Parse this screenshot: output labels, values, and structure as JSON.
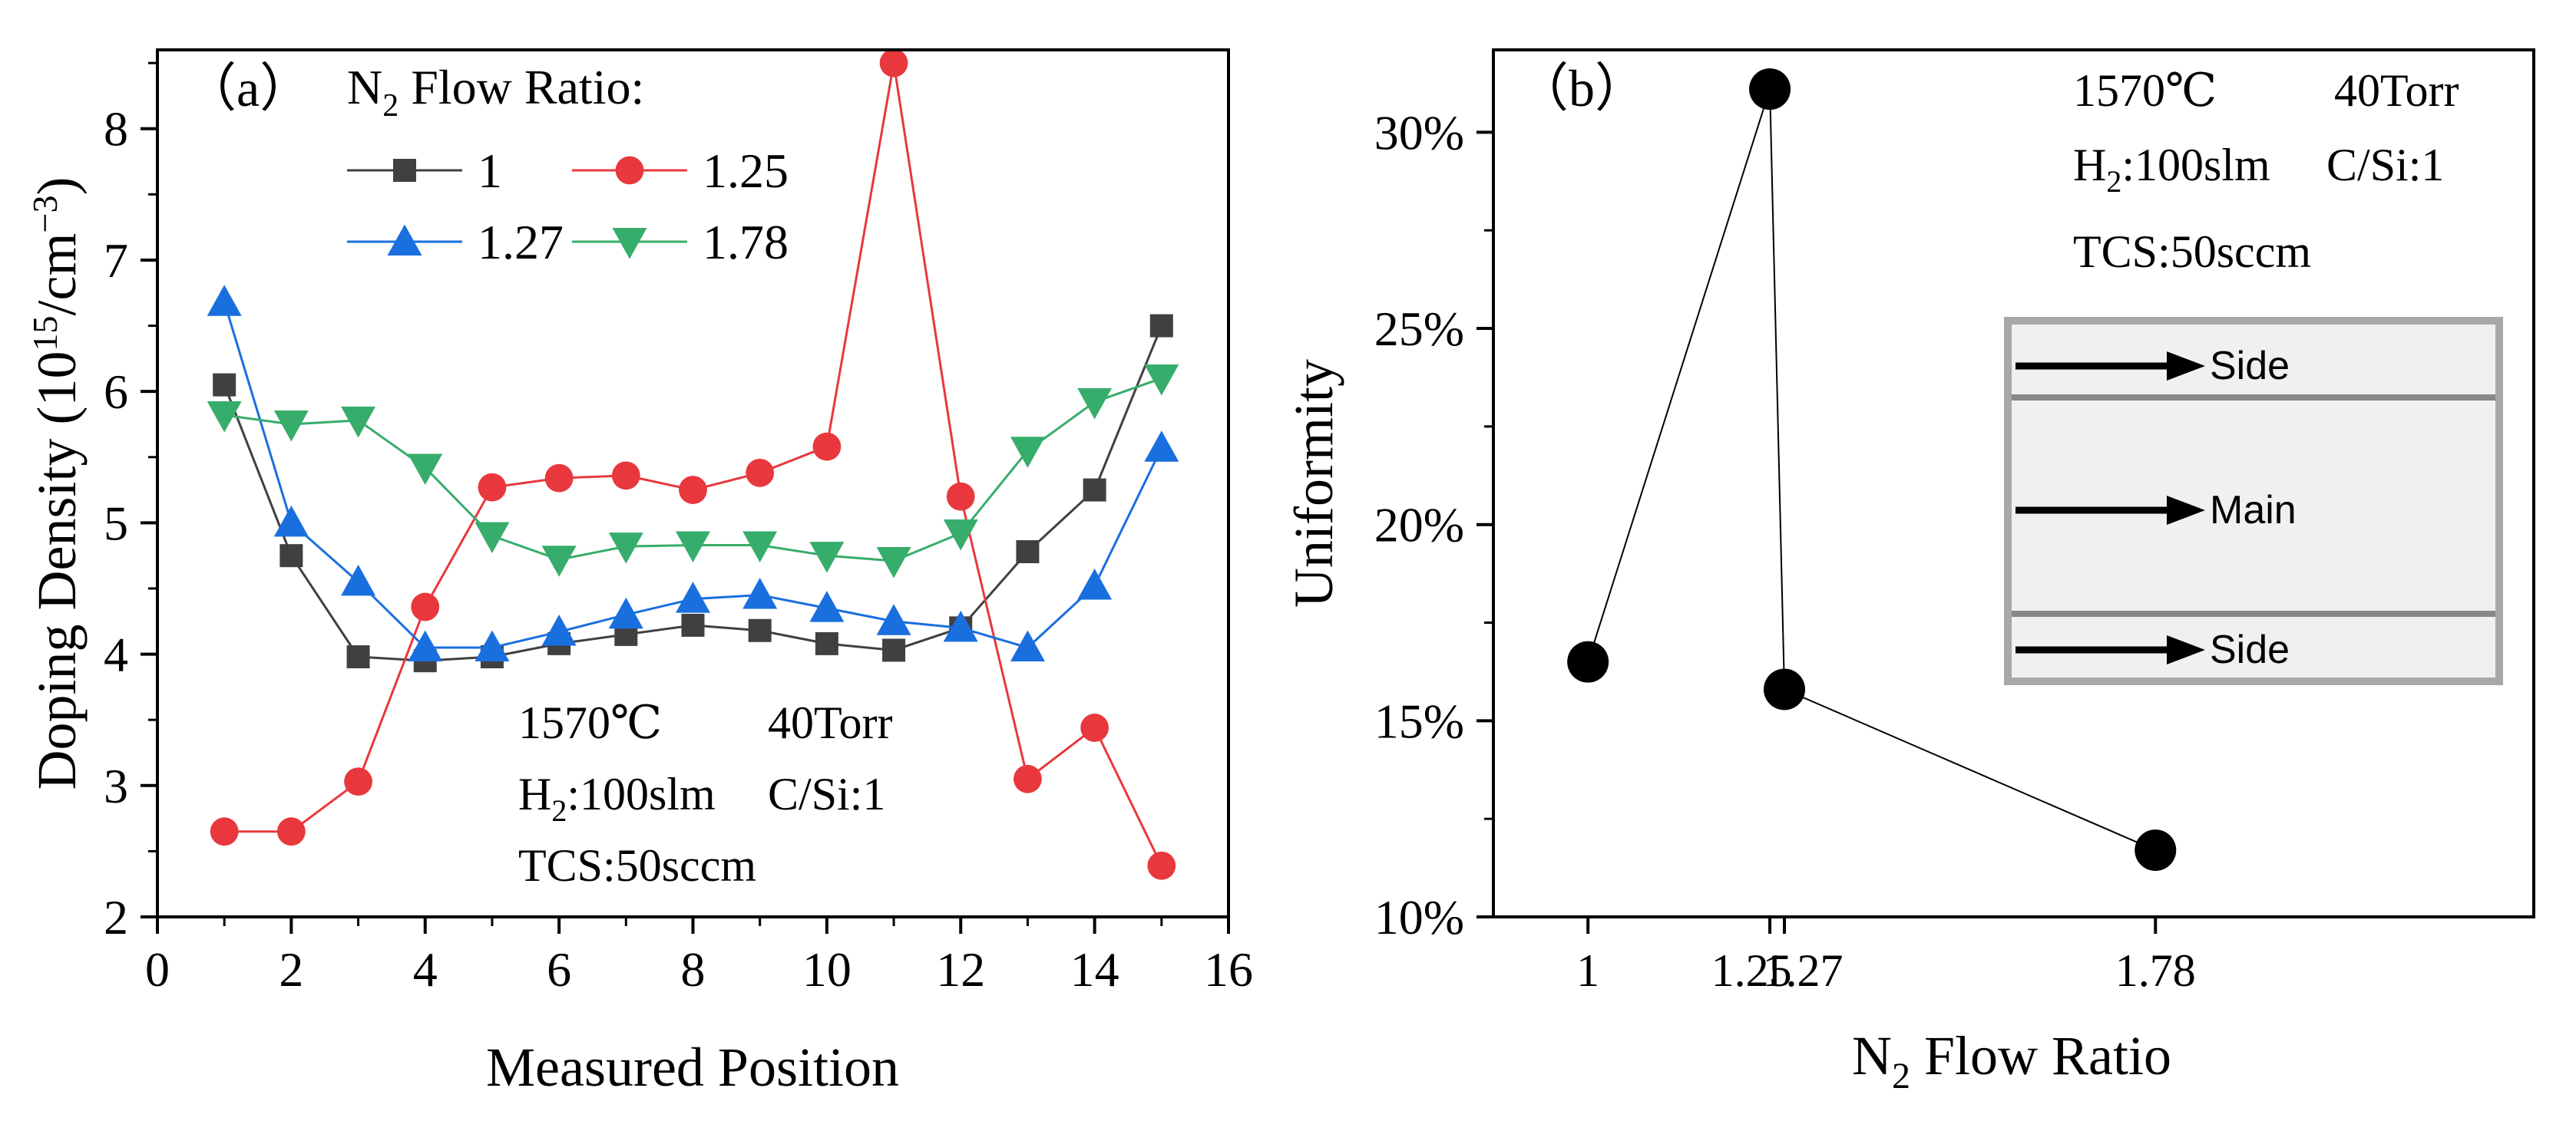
{
  "chart_data": [
    {
      "id": "a",
      "type": "line",
      "panel_label": "（a）",
      "xlabel": "Measured Position",
      "ylabel": {
        "main": "Doping Density (10",
        "sup1": "15",
        "mid": "/cm",
        "sup2": "−3",
        "end": ")"
      },
      "xlim": [
        0,
        16
      ],
      "ylim": [
        2,
        8.6
      ],
      "xticks": [
        0,
        2,
        4,
        6,
        8,
        10,
        12,
        14,
        16
      ],
      "yticks": [
        2,
        3,
        4,
        5,
        6,
        7,
        8
      ],
      "legend": {
        "title_main": "N",
        "title_sub": "2",
        "title_end": " Flow Ratio:",
        "placement": "top-left"
      },
      "x": [
        1,
        2,
        3,
        4,
        5,
        6,
        7,
        8,
        9,
        10,
        11,
        12,
        13,
        14,
        15
      ],
      "series": [
        {
          "name": "1",
          "marker": "square",
          "color": "#404040",
          "values": [
            6.05,
            4.75,
            3.98,
            3.95,
            3.98,
            4.08,
            4.15,
            4.22,
            4.18,
            4.08,
            4.03,
            4.2,
            4.78,
            5.25,
            6.5
          ]
        },
        {
          "name": "1.25",
          "marker": "circle",
          "color": "#e8383d",
          "values": [
            2.65,
            2.65,
            3.03,
            4.36,
            5.27,
            5.34,
            5.36,
            5.25,
            5.38,
            5.58,
            8.5,
            5.2,
            3.05,
            3.44,
            2.39
          ]
        },
        {
          "name": "1.27",
          "marker": "triangle-up",
          "color": "#1a6fdf",
          "values": [
            6.68,
            5.0,
            4.55,
            4.05,
            4.05,
            4.17,
            4.3,
            4.42,
            4.45,
            4.35,
            4.25,
            4.2,
            4.05,
            4.52,
            5.57
          ]
        },
        {
          "name": "1.78",
          "marker": "triangle-down",
          "color": "#37ad6b",
          "values": [
            5.82,
            5.75,
            5.78,
            5.42,
            4.9,
            4.72,
            4.82,
            4.83,
            4.83,
            4.75,
            4.71,
            4.92,
            5.55,
            5.92,
            6.1
          ]
        }
      ],
      "annotation": {
        "line1_temp": "1570℃",
        "line1_pressure": "40Torr",
        "line2_h2_main": "H",
        "line2_h2_sub": "2",
        "line2_h2_end": ":100slm",
        "line2_csi": "C/Si:1",
        "line3": "TCS:50sccm"
      }
    },
    {
      "id": "b",
      "type": "scatter",
      "panel_label": "（b）",
      "xlabel": {
        "main": "N",
        "sub": "2",
        "end": " Flow Ratio"
      },
      "ylabel": "Uniformity",
      "xlim": [
        0.87,
        2.3
      ],
      "ylim": [
        10,
        32.1
      ],
      "ytick_values": [
        10,
        15,
        20,
        25,
        30
      ],
      "ytick_labels": [
        "10%",
        "15%",
        "20%",
        "25%",
        "30%"
      ],
      "xtick_values": [
        1,
        1.25,
        1.27,
        1.78
      ],
      "xtick_labels": [
        "1",
        "1.25",
        "1.27",
        "1.78"
      ],
      "x": [
        1,
        1.25,
        1.27,
        1.78
      ],
      "values": [
        16.5,
        31.1,
        15.8,
        11.7
      ],
      "color": "#000000",
      "annotation": {
        "line1_temp": "1570℃",
        "line1_pressure": "40Torr",
        "line2_h2_main": "H",
        "line2_h2_sub": "2",
        "line2_h2_end": ":100slm",
        "line2_csi": "C/Si:1",
        "line3": "TCS:50sccm"
      },
      "inset": {
        "top_label": "Side",
        "middle_label": "Main",
        "bottom_label": "Side"
      }
    }
  ]
}
